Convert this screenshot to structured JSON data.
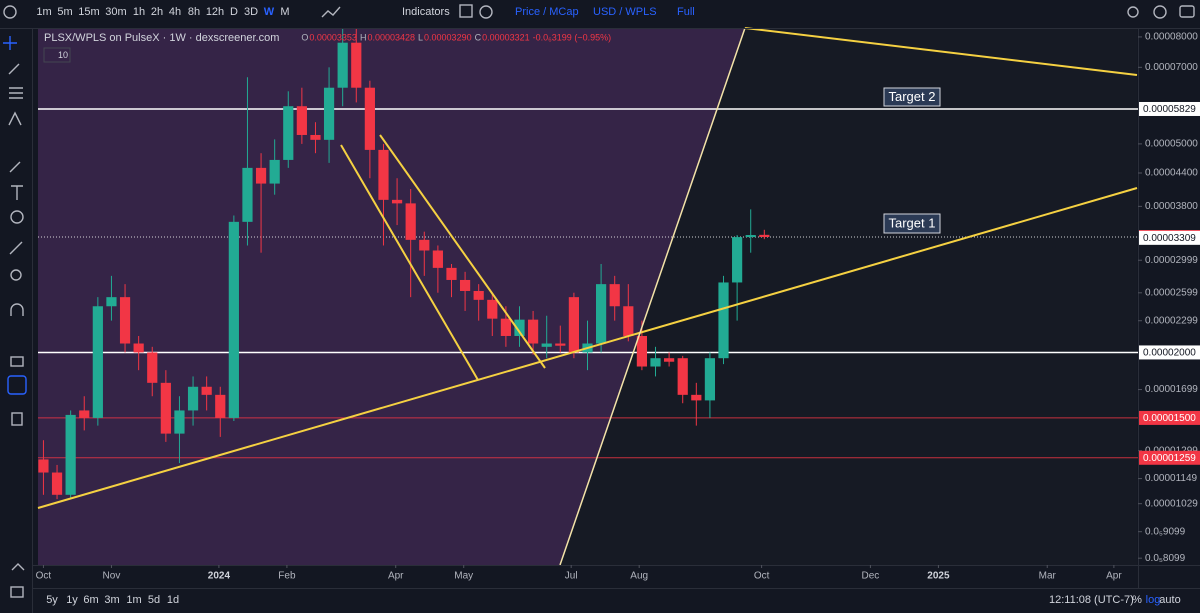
{
  "toolbar": {
    "intervals": [
      "1m",
      "5m",
      "15m",
      "30m",
      "1h",
      "2h",
      "4h",
      "8h",
      "12h",
      "D",
      "3D",
      "W",
      "M"
    ],
    "indicators": "Indicators",
    "price_mode": "Price / MCap",
    "currency": "USD / WPLS",
    "full": "Full"
  },
  "legend": {
    "symbol": "PLSX/WPLS on PulseX · 1W · dexscreener.com",
    "ohlc": [
      {
        "label": "O",
        "value": "0.00003353"
      },
      {
        "label": "H",
        "value": "0.00003428"
      },
      {
        "label": "L",
        "value": "0.00003290"
      },
      {
        "label": "C",
        "value": "0.00003321"
      }
    ],
    "change": "-0.0₆3199 (−0.95%)",
    "indicator": "10"
  },
  "chart_data": {
    "type": "candlestick",
    "log_scale": true,
    "up_color": "#22ab94",
    "down_color": "#f23645",
    "x": [
      0,
      1,
      2,
      3,
      4,
      5,
      6,
      7,
      8,
      9,
      10,
      11,
      12,
      13,
      14,
      15,
      16,
      17,
      18,
      19,
      20,
      21,
      22,
      23,
      24,
      25,
      26,
      27,
      28,
      29,
      30,
      31,
      32,
      33,
      34,
      35,
      36,
      37,
      38,
      39,
      40,
      41,
      42,
      43,
      44,
      45,
      46,
      47,
      48,
      49,
      50,
      51,
      52,
      53
    ],
    "open": [
      1.25e-05,
      1.18e-05,
      1.07e-05,
      1.55e-05,
      1.5e-05,
      2.45e-05,
      2.55e-05,
      2.08e-05,
      2e-05,
      1.75e-05,
      1.4e-05,
      1.55e-05,
      1.72e-05,
      1.66e-05,
      1.5e-05,
      3.55e-05,
      4.5e-05,
      4.2e-05,
      4.66e-05,
      5.9e-05,
      5.2e-05,
      5.09e-05,
      6.4e-05,
      7.8e-05,
      6.4e-05,
      4.87e-05,
      3.91e-05,
      3.85e-05,
      3.28e-05,
      3.13e-05,
      2.9e-05,
      2.75e-05,
      2.62e-05,
      2.52e-05,
      2.32e-05,
      2.15e-05,
      2.31e-05,
      2.05e-05,
      2.08e-05,
      2.55e-05,
      2e-05,
      2.08e-05,
      2.7e-05,
      2.45e-05,
      2.15e-05,
      1.88e-05,
      1.95e-05,
      1.95e-05,
      1.66e-05,
      1.62e-05,
      1.95e-05,
      2.72e-05,
      3.32e-05,
      3.353e-05
    ],
    "high": [
      1.36e-05,
      1.22e-05,
      1.55e-05,
      1.65e-05,
      2.55e-05,
      2.8e-05,
      2.7e-05,
      2.15e-05,
      2.05e-05,
      1.85e-05,
      1.65e-05,
      1.8e-05,
      1.8e-05,
      1.72e-05,
      3.65e-05,
      6.7e-05,
      4.8e-05,
      5.1e-05,
      6.3e-05,
      6.4e-05,
      5.5e-05,
      7e-05,
      8.3e-05,
      8.3e-05,
      6.6e-05,
      5e-05,
      4.3e-05,
      4.1e-05,
      3.4e-05,
      3.2e-05,
      2.95e-05,
      2.85e-05,
      2.7e-05,
      2.6e-05,
      2.45e-05,
      2.45e-05,
      2.4e-05,
      2.35e-05,
      2.25e-05,
      2.6e-05,
      2.3e-05,
      2.95e-05,
      2.8e-05,
      2.7e-05,
      2.3e-05,
      2.05e-05,
      2e-05,
      1.97e-05,
      1.75e-05,
      2e-05,
      2.8e-05,
      3.35e-05,
      3.75e-05,
      3.428e-05
    ],
    "low": [
      1.07e-05,
      1.05e-05,
      1.05e-05,
      1.42e-05,
      1.45e-05,
      2.3e-05,
      2e-05,
      1.85e-05,
      1.65e-05,
      1.35e-05,
      1.23e-05,
      1.45e-05,
      1.55e-05,
      1.38e-05,
      1.48e-05,
      3.2e-05,
      3.1e-05,
      4e-05,
      4.5e-05,
      5e-05,
      4.8e-05,
      4.6e-05,
      5.9e-05,
      6e-05,
      4.3e-05,
      3.2e-05,
      3.5e-05,
      2.55e-05,
      2.8e-05,
      2.6e-05,
      2.55e-05,
      2.4e-05,
      2.3e-05,
      2.15e-05,
      2.05e-05,
      2.05e-05,
      1.98e-05,
      1.95e-05,
      2e-05,
      1.95e-05,
      1.85e-05,
      2e-05,
      2.3e-05,
      2.1e-05,
      1.85e-05,
      1.8e-05,
      1.88e-05,
      1.6e-05,
      1.45e-05,
      1.5e-05,
      1.9e-05,
      2.3e-05,
      3.1e-05,
      3.29e-05
    ],
    "close": [
      1.18e-05,
      1.07e-05,
      1.52e-05,
      1.5e-05,
      2.45e-05,
      2.55e-05,
      2.08e-05,
      2e-05,
      1.75e-05,
      1.4e-05,
      1.55e-05,
      1.72e-05,
      1.66e-05,
      1.5e-05,
      3.55e-05,
      4.5e-05,
      4.2e-05,
      4.66e-05,
      5.9e-05,
      5.2e-05,
      5.09e-05,
      6.4e-05,
      7.8e-05,
      6.4e-05,
      4.87e-05,
      3.91e-05,
      3.85e-05,
      3.28e-05,
      3.13e-05,
      2.9e-05,
      2.75e-05,
      2.62e-05,
      2.52e-05,
      2.32e-05,
      2.15e-05,
      2.31e-05,
      2.08e-05,
      2.08e-05,
      2.06e-05,
      2e-05,
      2.08e-05,
      2.7e-05,
      2.45e-05,
      2.15e-05,
      1.88e-05,
      1.95e-05,
      1.92e-05,
      1.66e-05,
      1.62e-05,
      1.95e-05,
      2.72e-05,
      3.32e-05,
      3.35e-05,
      3.321e-05
    ],
    "xlim": [
      -0.4,
      80.4
    ],
    "xticks": [
      {
        "value": 0,
        "label": "Oct"
      },
      {
        "value": 5,
        "label": "Nov"
      },
      {
        "value": 12.9,
        "label": "2024"
      },
      {
        "value": 17.9,
        "label": "Feb"
      },
      {
        "value": 25.9,
        "label": "Apr"
      },
      {
        "value": 30.9,
        "label": "May"
      },
      {
        "value": 38.8,
        "label": "Jul"
      },
      {
        "value": 43.8,
        "label": "Aug"
      },
      {
        "value": 52.8,
        "label": "Oct"
      },
      {
        "value": 60.8,
        "label": "Dec"
      },
      {
        "value": 65.8,
        "label": "2025"
      },
      {
        "value": 73.8,
        "label": "Mar"
      },
      {
        "value": 78.7,
        "label": "Apr"
      }
    ],
    "ylim": [
      7.86e-06,
      8.32e-05
    ],
    "yticks": [
      {
        "value": 8e-05,
        "label": "0.00008000"
      },
      {
        "value": 7e-05,
        "label": "0.00007000"
      },
      {
        "value": 5e-05,
        "label": "0.00005000"
      },
      {
        "value": 4.4e-05,
        "label": "0.00004400"
      },
      {
        "value": 3.8e-05,
        "label": "0.00003800"
      },
      {
        "value": 2.999e-05,
        "label": "0.00002999"
      },
      {
        "value": 2.599e-05,
        "label": "0.00002599"
      },
      {
        "value": 2.299e-05,
        "label": "0.00002299"
      },
      {
        "value": 1.699e-05,
        "label": "0.00001699"
      },
      {
        "value": 1.299e-05,
        "label": "0.00001299"
      },
      {
        "value": 1.149e-05,
        "label": "0.00001149"
      },
      {
        "value": 1.029e-05,
        "label": "0.00001029"
      },
      {
        "value": 9.099e-06,
        "label": "0.0₅9099"
      },
      {
        "value": 8.099e-06,
        "label": "0.0₅8099"
      }
    ],
    "levels": [
      {
        "value": 5.829e-05,
        "label": "0.00005829",
        "color": "#ffffff",
        "style": "solid"
      },
      {
        "value": 3.321e-05,
        "label": "0.00003321",
        "color": "#f23645",
        "style": "dotted"
      },
      {
        "value": 3.309e-05,
        "label": "0.00003309",
        "color": "#ffffff",
        "style": "none"
      },
      {
        "value": 2e-05,
        "label": "0.00002000",
        "color": "#ffffff",
        "style": "solid"
      },
      {
        "value": 1.5e-05,
        "label": "0.00001500",
        "color": "#f23645",
        "style": "solid"
      },
      {
        "value": 1.259e-05,
        "label": "0.00001259",
        "color": "#f23645",
        "style": "solid"
      }
    ],
    "annotations": [
      "Target 2",
      "Target 1"
    ]
  },
  "bottom_bar": {
    "ranges": [
      "5y",
      "1y",
      "6m",
      "3m",
      "1m",
      "5d",
      "1d"
    ],
    "clock": "12:11:08 (UTC-7)",
    "scale_options": [
      "%",
      "log",
      "auto"
    ]
  }
}
